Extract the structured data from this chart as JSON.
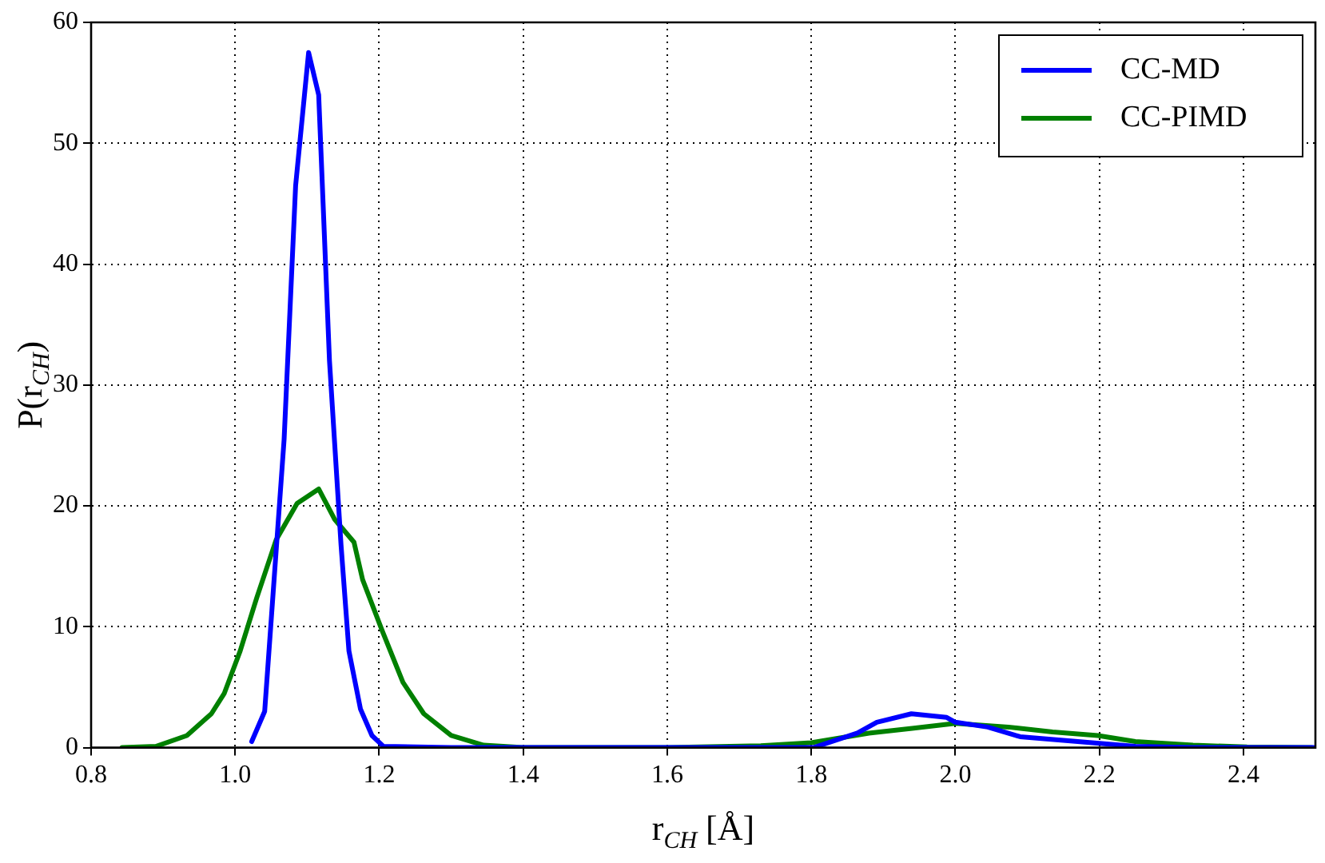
{
  "chart_data": {
    "type": "line",
    "xlabel": "r$_{CH}$ [Å]",
    "ylabel": "P(r$_{CH}$)",
    "xlim": [
      0.8,
      2.5
    ],
    "xticks": [
      {
        "value": 0.8,
        "label": "0.8"
      },
      {
        "value": 1.0,
        "label": "1.0"
      },
      {
        "value": 1.2,
        "label": "1.2"
      },
      {
        "value": 1.4,
        "label": "1.4"
      },
      {
        "value": 1.6,
        "label": "1.6"
      },
      {
        "value": 1.8,
        "label": "1.8"
      },
      {
        "value": 2.0,
        "label": "2.0"
      },
      {
        "value": 2.2,
        "label": "2.2"
      },
      {
        "value": 2.4,
        "label": "2.4"
      }
    ],
    "ylim": [
      0,
      60
    ],
    "yticks": [
      0,
      10,
      20,
      30,
      40,
      50,
      60
    ],
    "grid": true,
    "legend": "top right",
    "line_style": "solid",
    "marker": "none",
    "series": [
      {
        "name": "CC-MD",
        "color": "#0000ff",
        "x": [
          1.023,
          1.041,
          1.068,
          1.084,
          1.102,
          1.116,
          1.131,
          1.147,
          1.158,
          1.174,
          1.19,
          1.206,
          1.3,
          1.5,
          1.7,
          1.803,
          1.864,
          1.891,
          1.939,
          1.988,
          2.0,
          2.045,
          2.09,
          2.15,
          2.21,
          2.25,
          2.33,
          2.5
        ],
        "values": [
          0.5,
          3,
          25.5,
          46.5,
          57.5,
          54,
          32,
          16.8,
          8,
          3.2,
          1,
          0.1,
          0,
          0,
          0,
          0,
          1.2,
          2.1,
          2.8,
          2.5,
          2.1,
          1.7,
          0.9,
          0.6,
          0.3,
          0.1,
          0,
          0
        ]
      },
      {
        "name": "CC-PIMD",
        "color": "#008000",
        "x": [
          0.843,
          0.89,
          0.933,
          0.967,
          0.985,
          1.007,
          1.03,
          1.057,
          1.086,
          1.116,
          1.138,
          1.165,
          1.177,
          1.204,
          1.233,
          1.262,
          1.3,
          1.345,
          1.4,
          1.6,
          1.73,
          1.8,
          1.88,
          1.94,
          2.0,
          2.074,
          2.135,
          2.198,
          2.25,
          2.33,
          2.405,
          2.495
        ],
        "values": [
          0,
          0.1,
          1,
          2.8,
          4.5,
          8,
          12.4,
          17.2,
          20.2,
          21.4,
          18.9,
          17,
          13.9,
          9.7,
          5.4,
          2.8,
          1,
          0.2,
          0,
          0,
          0.15,
          0.4,
          1.2,
          1.6,
          2.0,
          1.7,
          1.3,
          1.0,
          0.5,
          0.2,
          0.05,
          0
        ]
      }
    ]
  }
}
